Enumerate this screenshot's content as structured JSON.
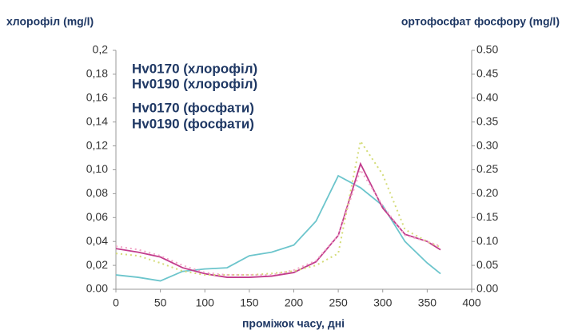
{
  "chart_data": {
    "type": "line",
    "y_label": "хлорофіл (mg/l)",
    "y2_label": "ортофосфат фосфору (mg/l)",
    "x_label": "проміжок часу, дні",
    "x": [
      0,
      25,
      50,
      75,
      100,
      125,
      150,
      175,
      200,
      225,
      250,
      275,
      300,
      325,
      350,
      365
    ],
    "xlim": [
      0,
      400
    ],
    "xticks": [
      0,
      50,
      100,
      150,
      200,
      250,
      300,
      350,
      400
    ],
    "ylim": [
      0,
      0.2
    ],
    "yticks": [
      {
        "value": 0,
        "label": "0.00"
      },
      {
        "value": 0.02,
        "label": "0,02"
      },
      {
        "value": 0.04,
        "label": "0,04"
      },
      {
        "value": 0.06,
        "label": "0,06"
      },
      {
        "value": 0.08,
        "label": "0,08"
      },
      {
        "value": 0.1,
        "label": "0,10"
      },
      {
        "value": 0.12,
        "label": "0,12"
      },
      {
        "value": 0.14,
        "label": "0,14"
      },
      {
        "value": 0.16,
        "label": "0,16"
      },
      {
        "value": 0.18,
        "label": "0,18"
      },
      {
        "value": 0.2,
        "label": "0,2"
      }
    ],
    "y2lim": [
      0,
      0.5
    ],
    "y2ticks": [
      {
        "value": 0,
        "label": "0.00"
      },
      {
        "value": 0.05,
        "label": "0.05"
      },
      {
        "value": 0.1,
        "label": "0.10"
      },
      {
        "value": 0.15,
        "label": "0.15"
      },
      {
        "value": 0.2,
        "label": "0.20"
      },
      {
        "value": 0.25,
        "label": "0.25"
      },
      {
        "value": 0.3,
        "label": "0.30"
      },
      {
        "value": 0.35,
        "label": "0.35"
      },
      {
        "value": 0.4,
        "label": "0.40"
      },
      {
        "value": 0.45,
        "label": "0.45"
      },
      {
        "value": 0.5,
        "label": "0.50"
      }
    ],
    "series": [
      {
        "name": "Hv0170 (хлорофіл)",
        "color": "#6cc5cc",
        "dashed": false,
        "values": [
          0.012,
          0.01,
          0.007,
          0.015,
          0.017,
          0.018,
          0.028,
          0.031,
          0.037,
          0.057,
          0.095,
          0.085,
          0.07,
          0.04,
          0.022,
          0.013
        ]
      },
      {
        "name": "Hv0190 (хлорофіл)",
        "color": "#c23c8c",
        "dashed": false,
        "values": [
          0.034,
          0.031,
          0.027,
          0.018,
          0.013,
          0.01,
          0.01,
          0.011,
          0.014,
          0.023,
          0.045,
          0.105,
          0.068,
          0.046,
          0.04,
          0.033
        ]
      },
      {
        "name": "Hv0170 (фосфати)",
        "color": "#d4dc78",
        "dashed": true,
        "axis": "y2",
        "values": [
          0.075,
          0.07,
          0.055,
          0.038,
          0.03,
          0.03,
          0.03,
          0.033,
          0.038,
          0.05,
          0.075,
          0.31,
          0.24,
          0.125,
          0.1,
          0.088
        ]
      },
      {
        "name": "Hv0190 (фосфати)",
        "color": "#f2a6c8",
        "dashed": true,
        "axis": "y2",
        "values": [
          0.09,
          0.083,
          0.07,
          0.05,
          0.035,
          0.03,
          0.03,
          0.03,
          0.04,
          0.06,
          0.113,
          0.25,
          0.175,
          0.113,
          0.1,
          0.09
        ]
      }
    ]
  }
}
